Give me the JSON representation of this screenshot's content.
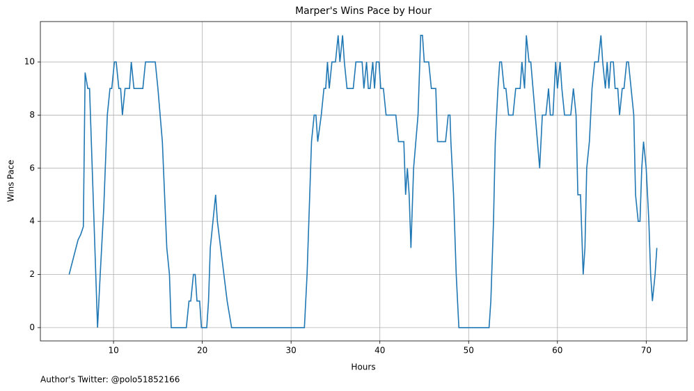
{
  "chart_data": {
    "type": "line",
    "title": "Marper's Wins Pace by Hour",
    "x_label": "Hours",
    "y_label": "Wins Pace",
    "footnote": "Author's Twitter: @polo51852166",
    "grid": true,
    "xlim": [
      1.76,
      74.6
    ],
    "ylim": [
      -0.5,
      11.52
    ],
    "xticks": [
      10,
      20,
      30,
      40,
      50,
      60,
      70
    ],
    "yticks": [
      0,
      2,
      4,
      6,
      8,
      10
    ],
    "series": [
      {
        "name": "Wins Pace",
        "color": "#1f77b4",
        "x": [
          5.0,
          6.0,
          6.3,
          6.6,
          6.8,
          7.1,
          7.3,
          7.6,
          7.9,
          8.2,
          8.5,
          8.9,
          9.3,
          9.6,
          9.8,
          10.1,
          10.3,
          10.6,
          10.8,
          11.0,
          11.3,
          11.8,
          12.0,
          12.3,
          13.3,
          13.6,
          14.7,
          15.0,
          15.5,
          16.0,
          16.3,
          16.5,
          18.2,
          18.5,
          18.7,
          19.0,
          19.2,
          19.4,
          19.7,
          19.9,
          20.5,
          20.7,
          20.9,
          21.5,
          21.7,
          22.8,
          23.3,
          31.5,
          31.8,
          32.1,
          32.3,
          32.6,
          32.8,
          33.0,
          33.4,
          33.7,
          33.9,
          34.1,
          34.3,
          34.6,
          35.0,
          35.3,
          35.5,
          35.8,
          36.0,
          36.3,
          37.0,
          37.3,
          38.0,
          38.2,
          38.5,
          38.7,
          38.9,
          39.2,
          39.4,
          39.6,
          39.9,
          40.1,
          40.4,
          40.7,
          41.8,
          42.1,
          42.7,
          42.9,
          43.1,
          43.3,
          43.5,
          43.8,
          44.3,
          44.6,
          44.8,
          45.0,
          45.5,
          45.8,
          46.3,
          46.5,
          47.4,
          47.7,
          47.9,
          48.0,
          48.3,
          48.6,
          48.9,
          52.3,
          52.5,
          52.8,
          53.0,
          53.3,
          53.5,
          53.7,
          54.0,
          54.2,
          54.5,
          55.0,
          55.3,
          55.8,
          56.0,
          56.3,
          56.5,
          56.8,
          57.0,
          57.5,
          58.0,
          58.3,
          58.7,
          59.0,
          59.2,
          59.5,
          59.8,
          60.0,
          60.3,
          60.5,
          60.8,
          61.5,
          61.8,
          62.1,
          62.3,
          62.6,
          62.9,
          63.1,
          63.3,
          63.6,
          63.9,
          64.2,
          64.6,
          64.9,
          65.1,
          65.4,
          65.6,
          65.8,
          66.0,
          66.3,
          66.5,
          66.8,
          67.0,
          67.3,
          67.5,
          67.8,
          68.0,
          68.3,
          68.6,
          68.8,
          69.1,
          69.3,
          69.5,
          69.7,
          70.0,
          70.3,
          70.5,
          70.7,
          71.0,
          71.2
        ],
        "values": [
          2,
          3.3,
          3.5,
          3.8,
          9.6,
          9,
          9,
          6,
          3,
          0,
          2,
          4.5,
          8,
          9,
          9,
          10,
          10,
          9,
          9,
          8,
          9,
          9,
          10,
          9,
          9,
          10,
          10,
          9,
          7,
          3,
          2,
          0,
          0,
          1,
          1,
          2,
          2,
          1,
          1,
          0,
          0,
          1,
          3,
          5,
          4,
          1,
          0,
          0,
          2,
          5,
          7,
          8,
          8,
          7,
          8,
          9,
          9,
          10,
          9,
          10,
          10,
          11,
          10,
          11,
          10,
          9,
          9,
          10,
          10,
          9,
          10,
          9,
          9,
          10,
          9,
          10,
          10,
          9,
          9,
          8,
          8,
          7,
          7,
          5,
          6,
          5,
          3,
          6,
          8,
          11,
          11,
          10,
          10,
          9,
          9,
          7,
          7,
          8,
          8,
          7,
          5,
          2,
          0,
          0,
          1,
          4,
          7,
          9,
          10,
          10,
          9,
          9,
          8,
          8,
          9,
          9,
          10,
          9,
          11,
          10,
          10,
          8,
          6,
          8,
          8,
          9,
          8,
          8,
          10,
          9,
          10,
          9,
          8,
          8,
          9,
          8,
          5,
          5,
          2,
          3,
          6,
          7,
          9,
          10,
          10,
          11,
          10,
          9,
          10,
          9,
          10,
          10,
          9,
          9,
          8,
          9,
          9,
          10,
          10,
          9,
          8,
          5,
          4,
          4,
          6,
          7,
          6,
          4,
          2,
          1,
          2,
          3
        ]
      }
    ]
  }
}
